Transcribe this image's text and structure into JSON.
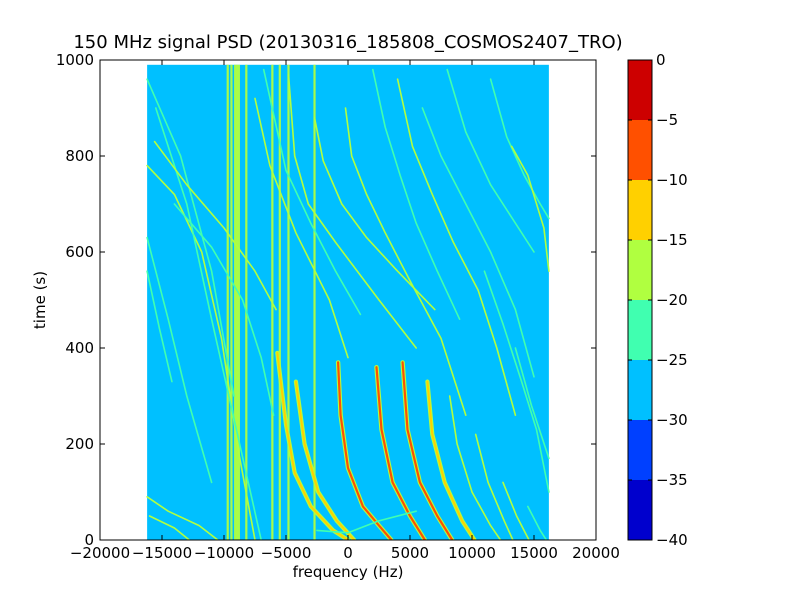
{
  "chart_data": {
    "type": "heatmap",
    "title": "150 MHz signal PSD (20130316_185808_COSMOS2407_TRO)",
    "xlabel": "frequency (Hz)",
    "ylabel": "time (s)",
    "xlim": [
      -20000,
      20000
    ],
    "ylim": [
      0,
      1000
    ],
    "x_ticks": [
      -20000,
      -15000,
      -10000,
      -5000,
      0,
      5000,
      10000,
      15000,
      20000
    ],
    "x_tick_labels": [
      "−20000",
      "−15000",
      "−10000",
      "−5000",
      "0",
      "5000",
      "10000",
      "15000",
      "20000"
    ],
    "y_ticks": [
      0,
      200,
      400,
      600,
      800,
      1000
    ],
    "y_tick_labels": [
      "0",
      "200",
      "400",
      "600",
      "800",
      "1000"
    ],
    "data_extent": {
      "x": [
        -16200,
        16200
      ],
      "y": [
        0,
        990
      ]
    },
    "background_level": -27.5,
    "colorbar": {
      "levels": [
        -40,
        -35,
        -30,
        -25,
        -20,
        -15,
        -10,
        -5,
        0
      ],
      "tick_labels": [
        "−40",
        "−35",
        "−30",
        "−25",
        "−20",
        "−15",
        "−10",
        "−5",
        "0"
      ],
      "colors": [
        "#0000cd",
        "#0040ff",
        "#00c0ff",
        "#40ffb0",
        "#b0ff40",
        "#ffd000",
        "#ff5000",
        "#cd0000"
      ]
    },
    "vertical_lines": [
      {
        "x": -9700,
        "ymax": 990
      },
      {
        "x": -9400,
        "ymax": 990
      },
      {
        "x": -9100,
        "ymax": 990
      },
      {
        "x": -8950,
        "ymax": 990
      },
      {
        "x": -8800,
        "ymax": 990
      },
      {
        "x": -8200,
        "ymax": 990
      },
      {
        "x": -6100,
        "ymax": 990
      },
      {
        "x": -5500,
        "ymax": 990
      },
      {
        "x": -4800,
        "ymax": 990
      },
      {
        "x": -2700,
        "ymax": 990
      }
    ],
    "tracks": [
      {
        "level": -20,
        "points": [
          [
            -16200,
            90
          ],
          [
            -14500,
            60
          ],
          [
            -12000,
            30
          ],
          [
            -10500,
            0
          ]
        ]
      },
      {
        "level": -20,
        "points": [
          [
            -16000,
            50
          ],
          [
            -14000,
            25
          ],
          [
            -12800,
            0
          ]
        ]
      },
      {
        "level": -25,
        "points": [
          [
            -16200,
            630
          ],
          [
            -14500,
            460
          ],
          [
            -13000,
            300
          ],
          [
            -11000,
            120
          ]
        ]
      },
      {
        "level": -25,
        "points": [
          [
            -16200,
            560
          ],
          [
            -15200,
            440
          ],
          [
            -14200,
            330
          ]
        ]
      },
      {
        "level": -20,
        "points": [
          [
            -16200,
            780
          ],
          [
            -14000,
            720
          ],
          [
            -11800,
            600
          ],
          [
            -10200,
            420
          ],
          [
            -8800,
            180
          ],
          [
            -7500,
            0
          ]
        ]
      },
      {
        "level": -25,
        "points": [
          [
            -16200,
            960
          ],
          [
            -13500,
            800
          ],
          [
            -11000,
            560
          ],
          [
            -9200,
            300
          ]
        ]
      },
      {
        "level": -25,
        "points": [
          [
            -15500,
            900
          ],
          [
            -13000,
            700
          ],
          [
            -11000,
            460
          ],
          [
            -9000,
            230
          ],
          [
            -7000,
            0
          ]
        ]
      },
      {
        "level": -20,
        "points": [
          [
            -15600,
            830
          ],
          [
            -13000,
            740
          ],
          [
            -10000,
            650
          ],
          [
            -7500,
            560
          ],
          [
            -5800,
            480
          ]
        ]
      },
      {
        "level": -25,
        "points": [
          [
            -14000,
            700
          ],
          [
            -11000,
            610
          ],
          [
            -8500,
            500
          ],
          [
            -7000,
            380
          ],
          [
            -6000,
            260
          ]
        ]
      },
      {
        "level": -20,
        "points": [
          [
            -7500,
            920
          ],
          [
            -6300,
            780
          ],
          [
            -4200,
            640
          ],
          [
            -1500,
            500
          ],
          [
            0,
            380
          ]
        ]
      },
      {
        "level": -25,
        "points": [
          [
            -6800,
            980
          ],
          [
            -5000,
            770
          ],
          [
            -3000,
            660
          ],
          [
            -1000,
            560
          ],
          [
            1000,
            470
          ]
        ]
      },
      {
        "level": -20,
        "points": [
          [
            -4800,
            970
          ],
          [
            -4300,
            800
          ],
          [
            -3200,
            700
          ],
          [
            -1000,
            620
          ],
          [
            2500,
            500
          ],
          [
            5500,
            400
          ]
        ]
      },
      {
        "level": -20,
        "points": [
          [
            -2700,
            880
          ],
          [
            -2000,
            790
          ],
          [
            -500,
            700
          ],
          [
            1500,
            630
          ],
          [
            4000,
            560
          ],
          [
            7000,
            480
          ]
        ]
      },
      {
        "level": -20,
        "points": [
          [
            -200,
            900
          ],
          [
            300,
            800
          ],
          [
            1500,
            720
          ],
          [
            3000,
            640
          ],
          [
            5000,
            540
          ],
          [
            7500,
            420
          ],
          [
            9500,
            260
          ]
        ]
      },
      {
        "level": -25,
        "points": [
          [
            2000,
            980
          ],
          [
            3000,
            860
          ],
          [
            4200,
            760
          ],
          [
            5500,
            660
          ],
          [
            7200,
            560
          ],
          [
            9000,
            460
          ]
        ]
      },
      {
        "level": -20,
        "points": [
          [
            4000,
            960
          ],
          [
            5200,
            820
          ],
          [
            6800,
            720
          ],
          [
            8500,
            620
          ],
          [
            10500,
            520
          ],
          [
            12000,
            400
          ],
          [
            13500,
            260
          ]
        ]
      },
      {
        "level": -25,
        "points": [
          [
            6000,
            900
          ],
          [
            7500,
            800
          ],
          [
            9500,
            700
          ],
          [
            11500,
            600
          ],
          [
            13500,
            480
          ],
          [
            15000,
            340
          ]
        ]
      },
      {
        "level": -25,
        "points": [
          [
            8000,
            980
          ],
          [
            9500,
            850
          ],
          [
            11500,
            740
          ],
          [
            13500,
            660
          ],
          [
            15000,
            600
          ]
        ]
      },
      {
        "level": -25,
        "points": [
          [
            11500,
            960
          ],
          [
            12800,
            840
          ],
          [
            14200,
            760
          ],
          [
            15500,
            700
          ],
          [
            16200,
            670
          ]
        ]
      },
      {
        "level": -20,
        "points": [
          [
            13200,
            820
          ],
          [
            14500,
            760
          ],
          [
            15800,
            650
          ],
          [
            16200,
            560
          ]
        ]
      },
      {
        "level": -25,
        "points": [
          [
            11000,
            560
          ],
          [
            12500,
            450
          ],
          [
            14000,
            330
          ],
          [
            15200,
            230
          ],
          [
            16200,
            100
          ]
        ]
      },
      {
        "level": -25,
        "points": [
          [
            13500,
            400
          ],
          [
            14800,
            280
          ],
          [
            16200,
            170
          ]
        ]
      },
      {
        "level": -15,
        "points": [
          [
            -5700,
            390
          ],
          [
            -5000,
            240
          ],
          [
            -4300,
            140
          ],
          [
            -3000,
            70
          ],
          [
            -1200,
            20
          ],
          [
            0,
            0
          ]
        ]
      },
      {
        "level": -15,
        "points": [
          [
            -4200,
            330
          ],
          [
            -3500,
            200
          ],
          [
            -2400,
            100
          ],
          [
            -900,
            40
          ],
          [
            500,
            0
          ]
        ]
      },
      {
        "level": -10,
        "points": [
          [
            -800,
            370
          ],
          [
            -600,
            260
          ],
          [
            0,
            150
          ],
          [
            1200,
            70
          ],
          [
            2500,
            30
          ],
          [
            3500,
            0
          ]
        ]
      },
      {
        "level": -10,
        "points": [
          [
            2300,
            360
          ],
          [
            2700,
            230
          ],
          [
            3600,
            120
          ],
          [
            5000,
            50
          ],
          [
            6200,
            0
          ]
        ]
      },
      {
        "level": -10,
        "points": [
          [
            4400,
            370
          ],
          [
            4800,
            230
          ],
          [
            5800,
            120
          ],
          [
            7200,
            50
          ],
          [
            8400,
            0
          ]
        ]
      },
      {
        "level": -15,
        "points": [
          [
            6400,
            330
          ],
          [
            6800,
            220
          ],
          [
            7800,
            120
          ],
          [
            9200,
            40
          ],
          [
            10200,
            0
          ]
        ]
      },
      {
        "level": -20,
        "points": [
          [
            8200,
            300
          ],
          [
            8800,
            200
          ],
          [
            10000,
            100
          ],
          [
            11500,
            30
          ],
          [
            12300,
            0
          ]
        ]
      },
      {
        "level": -20,
        "points": [
          [
            10300,
            220
          ],
          [
            11300,
            120
          ],
          [
            12600,
            40
          ],
          [
            13300,
            0
          ]
        ]
      },
      {
        "level": -20,
        "points": [
          [
            12500,
            120
          ],
          [
            13600,
            50
          ],
          [
            14600,
            0
          ]
        ]
      },
      {
        "level": -25,
        "points": [
          [
            14500,
            70
          ],
          [
            15500,
            20
          ],
          [
            16000,
            0
          ]
        ]
      },
      {
        "level": -25,
        "points": [
          [
            -2500,
            20
          ],
          [
            0,
            15
          ],
          [
            2500,
            40
          ],
          [
            5500,
            60
          ]
        ]
      }
    ]
  }
}
